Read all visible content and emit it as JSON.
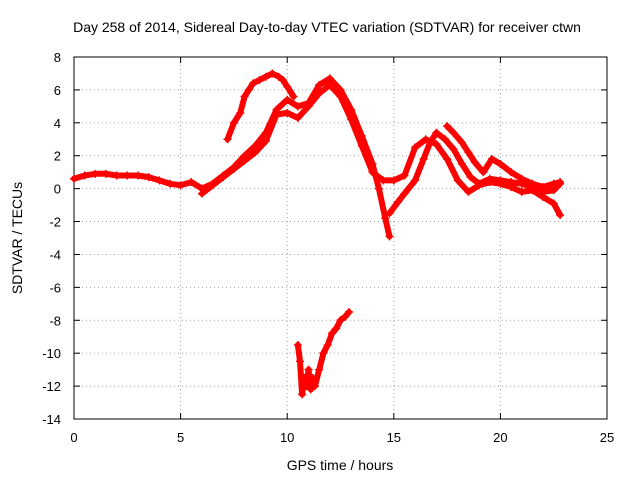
{
  "chart_data": {
    "type": "scatter",
    "title": "Day 258 of 2014, Sidereal Day-to-day VTEC variation (SDTVAR) for receiver ctwn",
    "xlabel": "GPS time / hours",
    "ylabel": "SDTVAR / TECUs",
    "xlim": [
      0,
      25
    ],
    "ylim": [
      -14,
      8
    ],
    "xticks": [
      0,
      5,
      10,
      15,
      20,
      25
    ],
    "yticks": [
      -14,
      -12,
      -10,
      -8,
      -6,
      -4,
      -2,
      0,
      2,
      4,
      6,
      8
    ],
    "grid": true,
    "marker": "+",
    "color": "#ff0000",
    "series": [
      {
        "name": "segment-1",
        "x": [
          0.0,
          0.5,
          1.0,
          1.5,
          2.0,
          2.5,
          3.0,
          3.5,
          4.0,
          4.5,
          5.0,
          5.5,
          6.0,
          6.5,
          7.0,
          7.5,
          8.0,
          8.5,
          9.0,
          9.5,
          10.0,
          10.5,
          11.0,
          11.5,
          12.0,
          12.5,
          13.0,
          13.5,
          14.0,
          14.3,
          14.6,
          14.8
        ],
        "y": [
          0.6,
          0.8,
          0.9,
          0.9,
          0.8,
          0.8,
          0.8,
          0.7,
          0.5,
          0.3,
          0.2,
          0.4,
          0.0,
          0.3,
          0.8,
          1.3,
          2.0,
          2.6,
          3.4,
          4.8,
          5.4,
          5.0,
          5.2,
          6.3,
          6.7,
          6.0,
          4.8,
          3.2,
          1.5,
          0.0,
          -1.8,
          -2.9
        ]
      },
      {
        "name": "segment-2",
        "x": [
          6.0,
          6.5,
          7.0,
          7.5,
          8.0,
          8.5,
          9.0,
          9.5,
          10.0,
          10.5,
          11.0,
          11.5,
          12.0,
          12.5,
          13.0,
          13.5,
          14.0,
          14.5,
          15.0,
          15.5,
          16.0,
          16.5,
          17.0,
          17.5,
          18.0,
          18.5,
          19.0,
          19.5,
          20.0,
          20.5,
          21.0,
          21.5,
          22.0,
          22.5,
          22.8
        ],
        "y": [
          -0.3,
          0.2,
          0.7,
          1.2,
          1.7,
          2.2,
          2.9,
          4.5,
          4.6,
          4.3,
          5.0,
          5.8,
          6.3,
          5.6,
          4.2,
          2.6,
          1.0,
          0.5,
          0.5,
          0.8,
          2.5,
          3.0,
          2.7,
          1.8,
          0.5,
          -0.2,
          0.2,
          0.4,
          0.3,
          0.1,
          -0.2,
          -0.1,
          -0.5,
          -0.9,
          -1.6
        ]
      },
      {
        "name": "segment-3",
        "x": [
          7.2,
          7.5,
          7.8,
          8.0,
          8.2,
          8.4,
          8.7,
          9.0,
          9.3,
          9.6,
          9.8,
          10.0,
          10.3
        ],
        "y": [
          3.0,
          4.0,
          4.6,
          5.6,
          6.0,
          6.4,
          6.6,
          6.8,
          7.0,
          6.8,
          6.6,
          6.2,
          5.6
        ]
      },
      {
        "name": "segment-4",
        "x": [
          14.8,
          15.2,
          15.5,
          16.0,
          16.4,
          16.7,
          17.0,
          17.4,
          17.8,
          18.2,
          18.6,
          19.0,
          19.5,
          20.0,
          20.5,
          21.0,
          21.5,
          22.0,
          22.5,
          22.8
        ],
        "y": [
          -1.5,
          -0.8,
          -0.3,
          0.5,
          1.8,
          2.8,
          3.4,
          3.0,
          2.4,
          1.5,
          0.7,
          0.3,
          0.6,
          0.5,
          0.4,
          0.3,
          0.1,
          -0.2,
          -0.1,
          0.3
        ]
      },
      {
        "name": "segment-5",
        "x": [
          17.5,
          17.8,
          18.2,
          18.5,
          18.8,
          19.2,
          19.6,
          20.0,
          20.5,
          21.0,
          21.5,
          22.0,
          22.5,
          22.8
        ],
        "y": [
          3.8,
          3.4,
          2.8,
          2.2,
          1.6,
          1.0,
          1.8,
          1.5,
          1.0,
          0.6,
          0.3,
          0.1,
          0.3,
          0.4
        ]
      },
      {
        "name": "segment-6",
        "x": [
          10.5,
          10.6,
          10.7,
          10.8,
          10.9,
          11.0,
          11.1,
          11.2,
          11.3,
          11.5,
          11.7,
          11.9,
          12.1,
          12.3,
          12.5,
          12.7,
          12.9
        ],
        "y": [
          -9.5,
          -10.5,
          -12.5,
          -11.5,
          -12.0,
          -11.0,
          -12.2,
          -11.5,
          -12.0,
          -11.0,
          -10.0,
          -9.5,
          -8.8,
          -8.5,
          -8.0,
          -7.8,
          -7.5
        ]
      }
    ]
  }
}
